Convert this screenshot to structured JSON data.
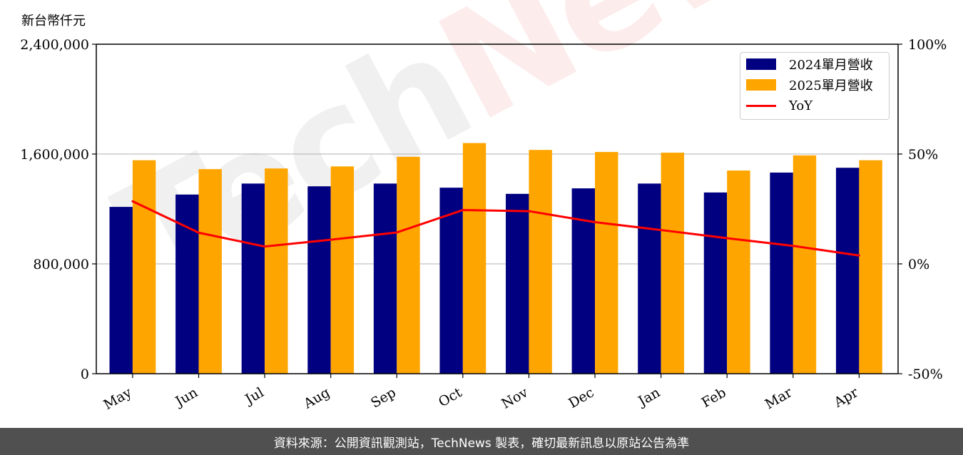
{
  "unit_label": "新台幣仟元",
  "footer_text": "資料來源：公開資訊觀測站，TechNews 製表，確切最新訊息以原站公告為準",
  "watermark": {
    "part1": "Tech",
    "part2": "News"
  },
  "colors": {
    "bar2024": "#000080",
    "bar2025": "#FFA500",
    "yoy": "#FF0000",
    "grid": "#b0b0b0"
  },
  "chart_data": {
    "type": "bar",
    "categories": [
      "May",
      "Jun",
      "Jul",
      "Aug",
      "Sep",
      "Oct",
      "Nov",
      "Dec",
      "Jan",
      "Feb",
      "Mar",
      "Apr"
    ],
    "series": [
      {
        "name": "2024單月營收",
        "type": "bar",
        "axis": "left",
        "values": [
          1215000,
          1305000,
          1385000,
          1365000,
          1385000,
          1355000,
          1310000,
          1350000,
          1385000,
          1320000,
          1465000,
          1500000
        ]
      },
      {
        "name": "2025單月營收",
        "type": "bar",
        "axis": "left",
        "values": [
          1555000,
          1490000,
          1495000,
          1510000,
          1580000,
          1680000,
          1630000,
          1615000,
          1610000,
          1480000,
          1590000,
          1555000
        ]
      },
      {
        "name": "YoY",
        "type": "line",
        "axis": "right",
        "values": [
          28.5,
          14.2,
          7.9,
          11.0,
          14.3,
          24.5,
          24.0,
          19.0,
          15.4,
          11.7,
          8.2,
          3.8
        ]
      }
    ],
    "yleft": {
      "lim": [
        0,
        2400000
      ],
      "ticks": [
        "0",
        "800,000",
        "1,600,000",
        "2,400,000"
      ],
      "tick_values": [
        0,
        800000,
        1600000,
        2400000
      ]
    },
    "yright": {
      "lim": [
        -50,
        100
      ],
      "ticks": [
        "-50%",
        "0%",
        "50%",
        "100%"
      ],
      "tick_values": [
        -50,
        0,
        50,
        100
      ]
    },
    "grid": "horizontal",
    "legend_position": "top-right"
  }
}
